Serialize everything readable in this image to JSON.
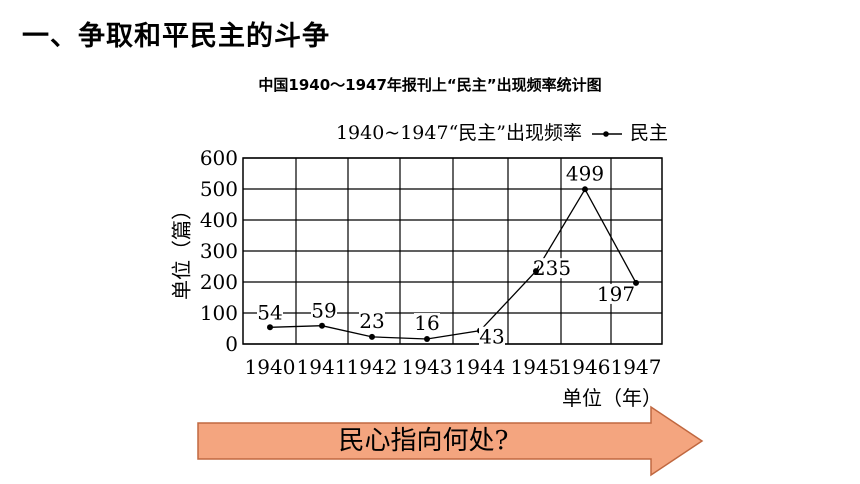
{
  "heading": "一、争取和平民主的斗争",
  "chart_data": {
    "type": "line",
    "title": "中国1940～1947年报刊上“民主”出现频率统计图",
    "inner_title": "1940~1947“民主”出现频率",
    "ylabel": "单位（篇）",
    "xlabel": "单位（年）",
    "categories": [
      "1940",
      "1941",
      "1942",
      "1943",
      "1944",
      "1945",
      "1946",
      "1947"
    ],
    "series": [
      {
        "name": "民主",
        "values": [
          54,
          59,
          23,
          16,
          43,
          235,
          499,
          197
        ]
      }
    ],
    "yticks": [
      "0",
      "100",
      "200",
      "300",
      "400",
      "500",
      "600"
    ],
    "ylim": [
      0,
      600
    ],
    "grid": true,
    "legend": "top-right",
    "color": "#000000"
  },
  "callout": {
    "text": "民心指向何处?",
    "fill": "#f4a57f",
    "stroke": "#c06840"
  }
}
